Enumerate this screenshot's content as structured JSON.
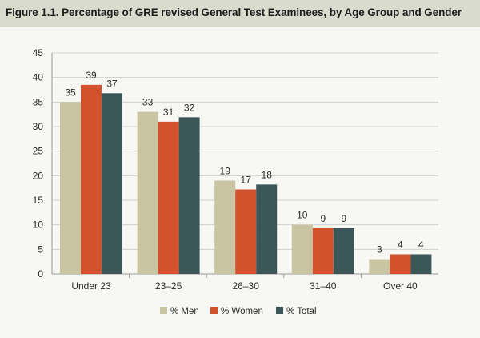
{
  "title": "Figure 1.1. Percentage of GRE revised General Test Examinees, by Age Group and Gender",
  "colors": {
    "men": "#c9c4a2",
    "women": "#d2522d",
    "total": "#3b5656",
    "title_bg": "#d9dccd"
  },
  "chart_data": {
    "type": "bar",
    "title": "Figure 1.1. Percentage of GRE revised General Test Examinees, by Age Group and Gender",
    "categories": [
      "Under 23",
      "23–25",
      "26–30",
      "31–40",
      "Over 40"
    ],
    "series": [
      {
        "name": "% Men",
        "values": [
          35,
          33,
          19,
          10,
          3
        ],
        "labels": [
          "35",
          "33",
          "19",
          "10",
          "3"
        ]
      },
      {
        "name": "% Women",
        "values": [
          38.5,
          31,
          17.2,
          9.3,
          4
        ],
        "labels": [
          "39",
          "31",
          "17",
          "9",
          "4"
        ]
      },
      {
        "name": "% Total",
        "values": [
          36.8,
          31.9,
          18.2,
          9.3,
          4
        ],
        "labels": [
          "37",
          "32",
          "18",
          "9",
          "4"
        ]
      }
    ],
    "yticks": [
      "0",
      "5",
      "10",
      "15",
      "20",
      "25",
      "30",
      "35",
      "40",
      "45"
    ],
    "ylim": [
      0,
      45
    ],
    "xlabel": "",
    "ylabel": "",
    "grid": true,
    "legend_position": "bottom"
  }
}
